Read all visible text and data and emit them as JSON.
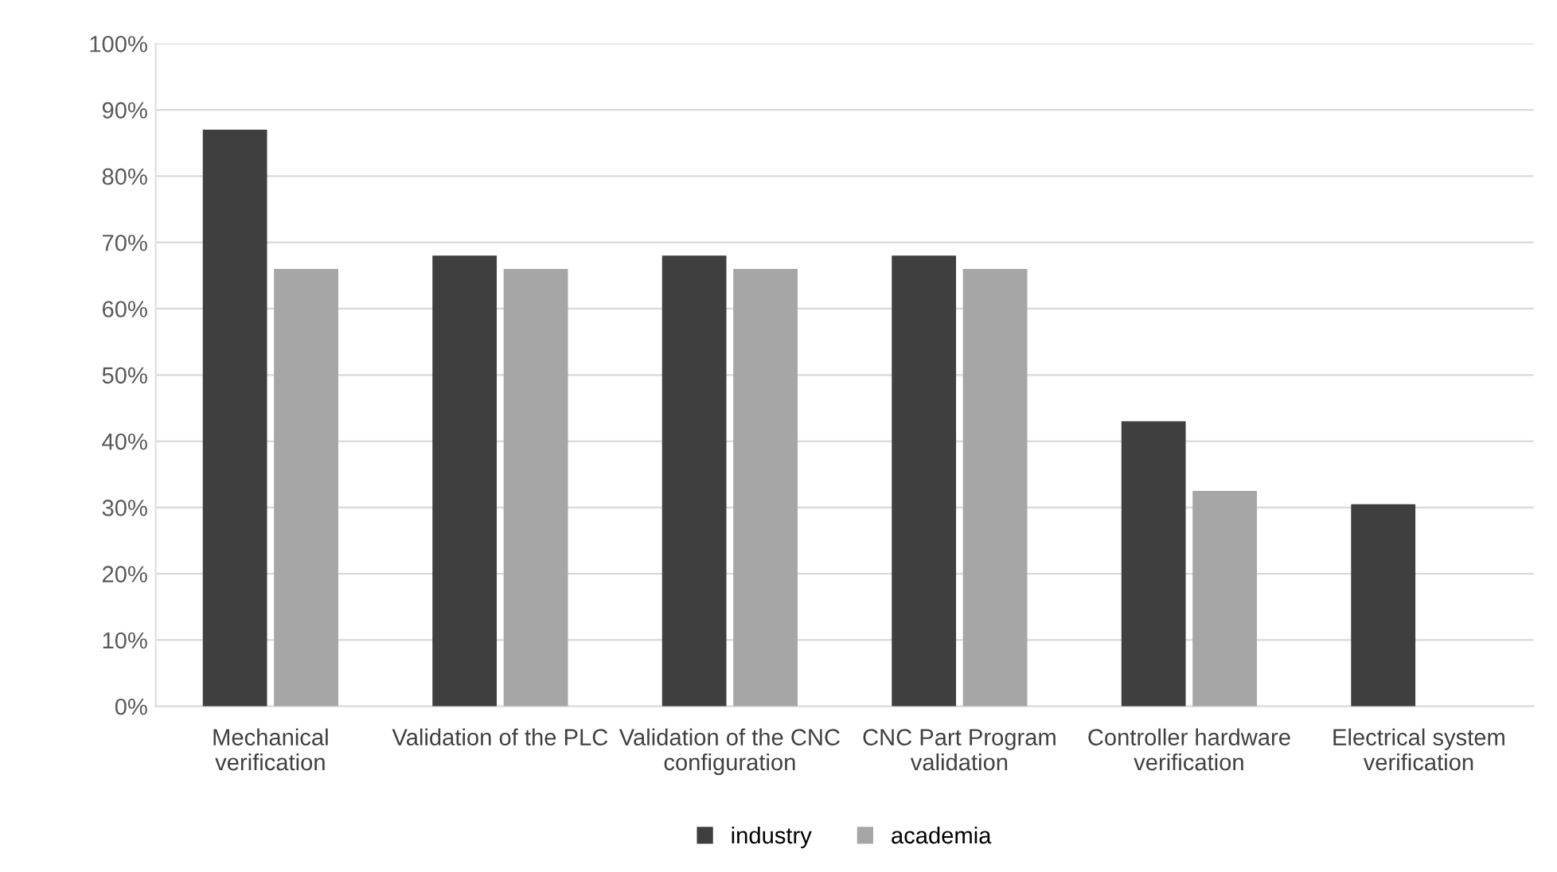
{
  "chart_data": {
    "type": "bar",
    "categories": [
      "Mechanical\nverification",
      "Validation of the PLC",
      "Validation of the CNC\nconfiguration",
      "CNC Part Program\nvalidation",
      "Controller hardware\nverification",
      "Electrical system\nverification"
    ],
    "series": [
      {
        "name": "industry",
        "color": "#3f3f3f",
        "values": [
          87,
          68,
          68,
          68,
          43,
          30.5
        ]
      },
      {
        "name": "academia",
        "color": "#a6a6a6",
        "values": [
          66,
          66,
          66,
          66,
          32.5,
          0
        ]
      }
    ],
    "ylim": [
      0,
      100
    ],
    "yticks": [
      {
        "value": 0,
        "label": "0%"
      },
      {
        "value": 10,
        "label": "10%"
      },
      {
        "value": 20,
        "label": "20%"
      },
      {
        "value": 30,
        "label": "30%"
      },
      {
        "value": 40,
        "label": "40%"
      },
      {
        "value": 50,
        "label": "50%"
      },
      {
        "value": 60,
        "label": "60%"
      },
      {
        "value": 70,
        "label": "70%"
      },
      {
        "value": 80,
        "label": "80%"
      },
      {
        "value": 90,
        "label": "90%"
      },
      {
        "value": 100,
        "label": "100%"
      }
    ],
    "grid": "y",
    "legend": "bottom"
  }
}
